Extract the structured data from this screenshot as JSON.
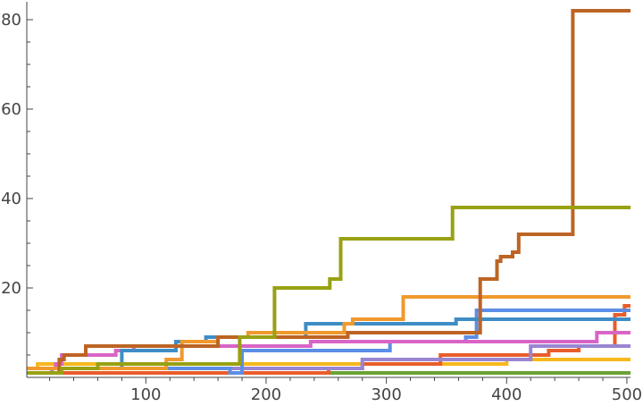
{
  "chart_data": {
    "type": "line",
    "step": true,
    "title": "",
    "xlabel": "",
    "ylabel": "",
    "xlim": [
      1,
      503
    ],
    "ylim": [
      0,
      84
    ],
    "x_ticks": [
      100,
      200,
      300,
      400,
      500
    ],
    "y_ticks": [
      20,
      40,
      60,
      80
    ],
    "grid": false,
    "series": [
      {
        "color": "#6aa233",
        "x": [
          1,
          503
        ],
        "y": [
          1,
          1
        ]
      },
      {
        "color": "#f6b81c",
        "x": [
          1,
          10,
          170,
          400,
          503
        ],
        "y": [
          2,
          3,
          3,
          4,
          4
        ]
      },
      {
        "color": "#e85d2b",
        "x": [
          1,
          22,
          28,
          252,
          280,
          345,
          375,
          435,
          460,
          490,
          498,
          503
        ],
        "y": [
          1,
          2,
          1,
          2,
          3,
          5,
          5,
          6,
          7,
          14,
          16,
          16
        ]
      },
      {
        "color": "#9985d2",
        "x": [
          1,
          22,
          280,
          345,
          420,
          503
        ],
        "y": [
          1,
          2,
          4,
          4,
          7,
          7
        ]
      },
      {
        "color": "#5c8ee6",
        "x": [
          1,
          165,
          170,
          180,
          303,
          366,
          375,
          503
        ],
        "y": [
          2,
          2,
          1,
          6,
          8,
          9,
          15,
          15
        ]
      },
      {
        "color": "#d865c6",
        "x": [
          1,
          25,
          30,
          75,
          90,
          237,
          465,
          475,
          503
        ],
        "y": [
          2,
          3,
          5,
          6,
          7,
          8,
          8,
          10,
          10
        ]
      },
      {
        "color": "#3f8dc6",
        "x": [
          1,
          80,
          125,
          150,
          155,
          233,
          358,
          380,
          503
        ],
        "y": [
          2,
          6,
          8,
          9,
          9,
          12,
          13,
          13,
          13
        ]
      },
      {
        "color": "#f0992d",
        "x": [
          1,
          117,
          130,
          160,
          185,
          265,
          272,
          314,
          503
        ],
        "y": [
          2,
          4,
          8,
          9,
          10,
          12,
          13,
          18,
          18
        ]
      },
      {
        "color": "#bd6424",
        "x": [
          1,
          28,
          32,
          50,
          130,
          136,
          160,
          225,
          268,
          373,
          378,
          392,
          395,
          402,
          405,
          410,
          413,
          455,
          503
        ],
        "y": [
          1,
          4,
          5,
          7,
          7,
          7,
          9,
          9,
          10,
          10,
          22,
          26,
          27,
          27,
          28,
          32,
          32,
          82,
          82
        ]
      },
      {
        "color": "#98a112",
        "x": [
          1,
          30,
          60,
          175,
          178,
          207,
          253,
          256,
          262,
          263,
          355,
          503
        ],
        "y": [
          1,
          2,
          3,
          3,
          9,
          20,
          22,
          22,
          31,
          31,
          38,
          38
        ]
      }
    ]
  }
}
